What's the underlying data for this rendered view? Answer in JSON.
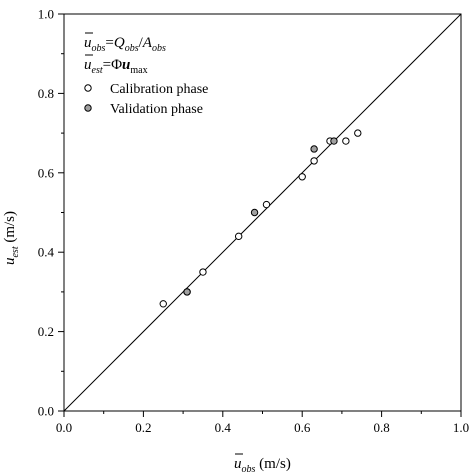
{
  "chart_data": {
    "type": "scatter",
    "xlabel": {
      "symbol": "u",
      "subscript": "obs",
      "unit": "(m/s)"
    },
    "ylabel": {
      "symbol": "u",
      "subscript": "est",
      "unit": "(m/s)"
    },
    "xlim": [
      0.0,
      1.0
    ],
    "ylim": [
      0.0,
      1.0
    ],
    "x_ticks": [
      "0.0",
      "0.2",
      "0.4",
      "0.6",
      "0.8",
      "1.0"
    ],
    "y_ticks": [
      "0.0",
      "0.2",
      "0.4",
      "0.6",
      "0.8",
      "1.0"
    ],
    "grid": false,
    "reference_line": {
      "type": "1:1",
      "from": [
        0,
        0
      ],
      "to": [
        1,
        1
      ]
    },
    "annotations": {
      "eq1": {
        "lhs": "u",
        "lhs_sub": "obs",
        "rhs_a": "Q",
        "rhs_a_sub": "obs",
        "sep": "/",
        "rhs_b": "A",
        "rhs_b_sub": "obs"
      },
      "eq2": {
        "lhs": "u",
        "lhs_sub": "est",
        "rhs_a": "Φ",
        "rhs_b": "u",
        "rhs_b_sub": "max"
      }
    },
    "legend": {
      "position": "top-left",
      "entries": [
        "Calibration phase",
        "Validation phase"
      ]
    },
    "series": [
      {
        "name": "Calibration phase",
        "marker": "open-circle",
        "color": "#000000",
        "points": [
          [
            0.25,
            0.27
          ],
          [
            0.31,
            0.3
          ],
          [
            0.35,
            0.35
          ],
          [
            0.44,
            0.44
          ],
          [
            0.51,
            0.52
          ],
          [
            0.6,
            0.59
          ],
          [
            0.63,
            0.63
          ],
          [
            0.67,
            0.68
          ],
          [
            0.71,
            0.68
          ],
          [
            0.74,
            0.7
          ]
        ]
      },
      {
        "name": "Validation phase",
        "marker": "grey-circle",
        "color": "#a0a0a0",
        "points": [
          [
            0.31,
            0.3
          ],
          [
            0.48,
            0.5
          ],
          [
            0.63,
            0.66
          ],
          [
            0.68,
            0.68
          ]
        ]
      }
    ]
  }
}
